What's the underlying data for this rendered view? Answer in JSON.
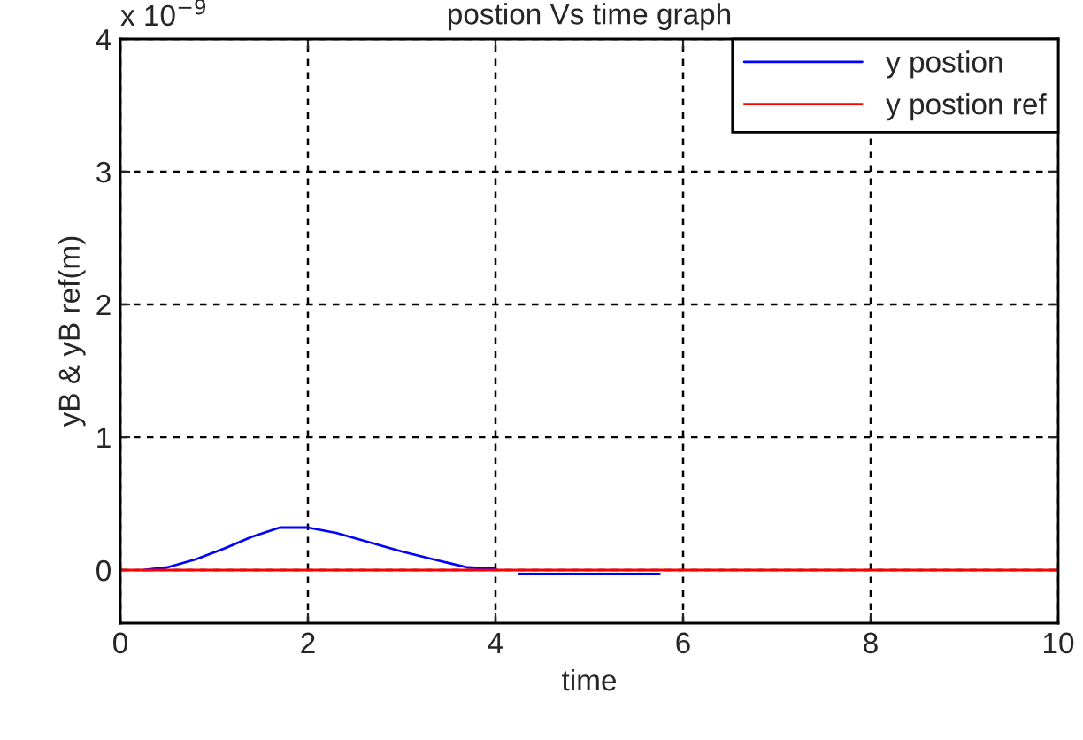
{
  "chart_data": {
    "type": "line",
    "title": "postion Vs time graph",
    "xlabel": "time",
    "ylabel": "yB & yB ref(m)",
    "annotations": [
      "x 10$^{−9}$"
    ],
    "series": [
      {
        "name": "y postion",
        "color": "#0000ff",
        "x": [
          0.25,
          0.5,
          0.8,
          1.1,
          1.4,
          1.7,
          2.0,
          2.3,
          2.6,
          3.0,
          3.4,
          3.7,
          4.0,
          4.1,
          4.25,
          5.75
        ],
        "values": [
          0,
          0.02,
          0.08,
          0.16,
          0.25,
          0.32,
          0.32,
          0.28,
          0.22,
          0.14,
          0.07,
          0.02,
          0.01,
          null,
          -0.03,
          -0.03
        ]
      },
      {
        "name": "y postion ref",
        "color": "#ff0000",
        "x": [
          0,
          10
        ],
        "values": [
          0,
          0
        ]
      }
    ],
    "xlim": [
      0,
      10
    ],
    "xticks": [
      0,
      2,
      4,
      6,
      8,
      10
    ],
    "ylim": [
      -0.4,
      4
    ],
    "yticks": [
      0,
      1,
      2,
      3,
      4
    ],
    "grid": true,
    "legend": "top right",
    "line_style": "solid",
    "marker": "none"
  }
}
